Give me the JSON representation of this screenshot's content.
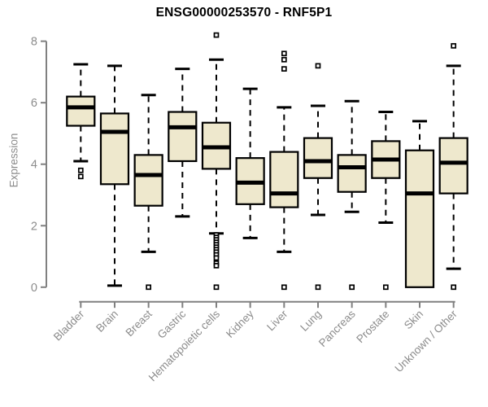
{
  "header": {
    "title": "ENSG00000253570 - RNF5P1"
  },
  "chart_data": {
    "type": "boxplot",
    "title": "ENSG00000253570 - RNF5P1",
    "xlabel": "",
    "ylabel": "Expression",
    "ylim": [
      0,
      8
    ],
    "yticks": [
      0,
      2,
      4,
      6,
      8
    ],
    "grid": false,
    "legend": false,
    "colors": {
      "box_fill": "#EEE8CD",
      "box_border": "#000000",
      "median": "#000000",
      "whisker": "#000000",
      "outlier": "#000000",
      "axis": "#808080",
      "label": "#8c8c8c",
      "title": "#000000",
      "background": "#ffffff"
    },
    "categories": [
      "Bladder",
      "Brain",
      "Breast",
      "Gastric",
      "Hematopoietic cells",
      "Kidney",
      "Liver",
      "Lung",
      "Pancreas",
      "Prostate",
      "Skin",
      "Unknown / Other"
    ],
    "series": [
      {
        "name": "Bladder",
        "whisker_low": 4.1,
        "q1": 5.25,
        "median": 5.85,
        "q3": 6.2,
        "whisker_high": 7.25,
        "outliers": [
          3.8,
          3.6
        ]
      },
      {
        "name": "Brain",
        "whisker_low": 0.05,
        "q1": 3.35,
        "median": 5.05,
        "q3": 5.65,
        "whisker_high": 7.2,
        "outliers": []
      },
      {
        "name": "Breast",
        "whisker_low": 1.15,
        "q1": 2.65,
        "median": 3.65,
        "q3": 4.3,
        "whisker_high": 6.25,
        "outliers": [
          0
        ]
      },
      {
        "name": "Gastric",
        "whisker_low": 2.3,
        "q1": 4.1,
        "median": 5.2,
        "q3": 5.7,
        "whisker_high": 7.1,
        "outliers": []
      },
      {
        "name": "Hematopoietic cells",
        "whisker_low": 1.75,
        "q1": 3.85,
        "median": 4.55,
        "q3": 5.35,
        "whisker_high": 7.4,
        "outliers": [
          8.2,
          1.7,
          1.62,
          1.54,
          1.46,
          1.38,
          1.3,
          1.22,
          1.14,
          1.05,
          0.95,
          0.78,
          0.7,
          0
        ]
      },
      {
        "name": "Kidney",
        "whisker_low": 1.6,
        "q1": 2.7,
        "median": 3.4,
        "q3": 4.2,
        "whisker_high": 6.45,
        "outliers": []
      },
      {
        "name": "Liver",
        "whisker_low": 1.15,
        "q1": 2.6,
        "median": 3.05,
        "q3": 4.4,
        "whisker_high": 5.85,
        "outliers": [
          7.6,
          7.4,
          7.1,
          0
        ]
      },
      {
        "name": "Lung",
        "whisker_low": 2.35,
        "q1": 3.55,
        "median": 4.1,
        "q3": 4.85,
        "whisker_high": 5.9,
        "outliers": [
          7.2,
          0
        ]
      },
      {
        "name": "Pancreas",
        "whisker_low": 2.45,
        "q1": 3.1,
        "median": 3.9,
        "q3": 4.3,
        "whisker_high": 6.05,
        "outliers": [
          0
        ]
      },
      {
        "name": "Prostate",
        "whisker_low": 2.1,
        "q1": 3.55,
        "median": 4.15,
        "q3": 4.75,
        "whisker_high": 5.7,
        "outliers": [
          0
        ]
      },
      {
        "name": "Skin",
        "whisker_low": 0,
        "q1": 0,
        "median": 3.05,
        "q3": 4.45,
        "whisker_high": 5.4,
        "outliers": []
      },
      {
        "name": "Unknown / Other",
        "whisker_low": 0.6,
        "q1": 3.05,
        "median": 4.05,
        "q3": 4.85,
        "whisker_high": 7.2,
        "outliers": [
          7.85,
          0
        ]
      }
    ]
  }
}
